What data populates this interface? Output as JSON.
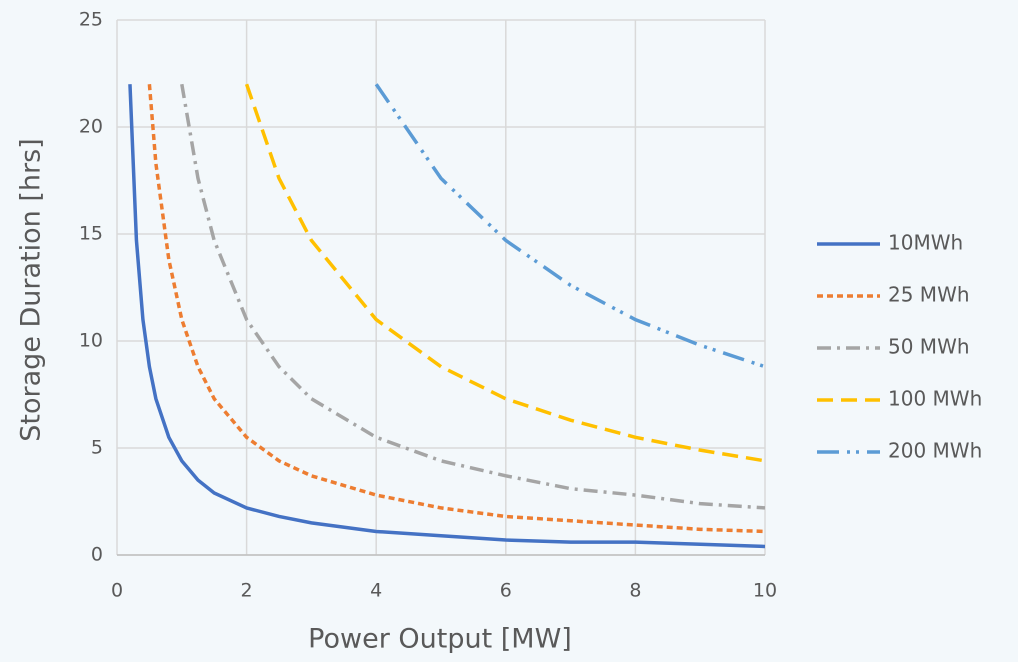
{
  "chart_data": {
    "type": "line",
    "x_label": "Power Output [MW]",
    "y_label": "Storage Duration [hrs]",
    "x": [
      0.2,
      0.3,
      0.4,
      0.5,
      0.6,
      0.8,
      1,
      1.25,
      1.5,
      2,
      2.5,
      3,
      4,
      5,
      6,
      7,
      8,
      9,
      10
    ],
    "series": [
      {
        "name": "10MWh",
        "color": "#4472c4",
        "dash": "solid",
        "values": [
          22,
          14.7,
          11,
          8.8,
          7.3,
          5.5,
          4.4,
          3.5,
          2.9,
          2.2,
          1.8,
          1.5,
          1.1,
          0.9,
          0.7,
          0.6,
          0.6,
          0.5,
          0.4
        ]
      },
      {
        "name": "25 MWh",
        "color": "#ed7d31",
        "dash": "dash",
        "values": [
          null,
          null,
          null,
          22,
          18.3,
          13.8,
          11,
          8.8,
          7.3,
          5.5,
          4.4,
          3.7,
          2.8,
          2.2,
          1.8,
          1.6,
          1.4,
          1.2,
          1.1
        ]
      },
      {
        "name": "50 MWh",
        "color": "#a5a5a5",
        "dash": "dashdot",
        "values": [
          null,
          null,
          null,
          null,
          null,
          null,
          22,
          17.6,
          14.7,
          11,
          8.8,
          7.3,
          5.5,
          4.4,
          3.7,
          3.1,
          2.8,
          2.4,
          2.2
        ]
      },
      {
        "name": "100 MWh",
        "color": "#ffc000",
        "dash": "longdash",
        "values": [
          null,
          null,
          null,
          null,
          null,
          null,
          null,
          null,
          null,
          22,
          17.6,
          14.7,
          11,
          8.8,
          7.3,
          6.3,
          5.5,
          4.9,
          4.4
        ]
      },
      {
        "name": "200 MWh",
        "color": "#5b9bd5",
        "dash": "dashdotdot",
        "values": [
          null,
          null,
          null,
          null,
          null,
          null,
          null,
          null,
          null,
          null,
          null,
          null,
          22,
          17.6,
          14.7,
          12.6,
          11,
          9.8,
          8.8
        ]
      }
    ],
    "xlim": [
      0,
      10
    ],
    "xticks": [
      0,
      2,
      4,
      6,
      8,
      10
    ],
    "ylim": [
      0,
      25
    ],
    "yticks": [
      0,
      5,
      10,
      15,
      20,
      25
    ],
    "grid": true,
    "legend": "right"
  }
}
